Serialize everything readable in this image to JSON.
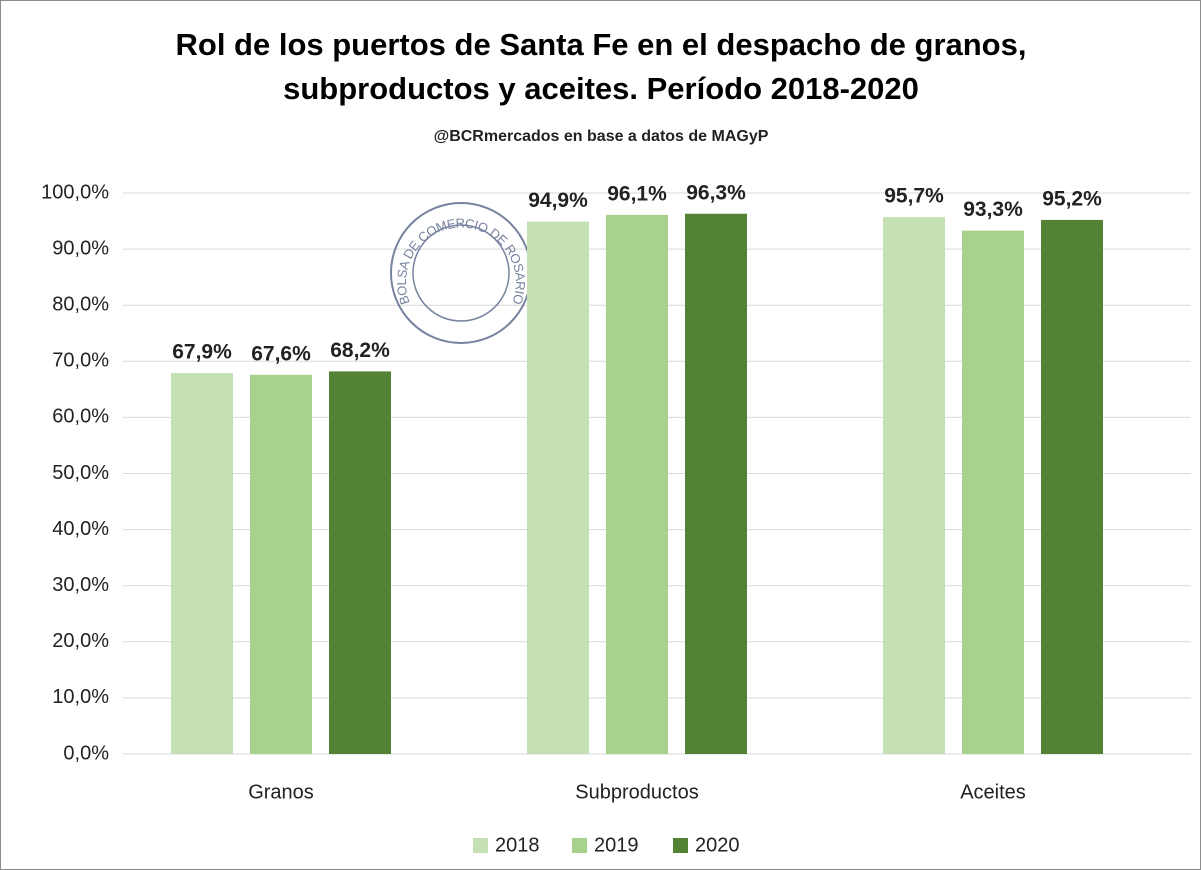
{
  "chart_data": {
    "type": "bar",
    "title": "Rol de los puertos de Santa Fe en el despacho de granos, subproductos y aceites. Período 2018-2020",
    "subtitle": "@BCRmercados en base a datos de MAGyP",
    "watermark": "BOLSA DE COMERCIO DE ROSARIO",
    "categories": [
      "Granos",
      "Subproductos",
      "Aceites"
    ],
    "series": [
      {
        "name": "2018",
        "color": "#c5e0b4",
        "values": [
          67.9,
          94.9,
          95.7
        ],
        "value_labels": [
          "67,9%",
          "94,9%",
          "95,7%"
        ]
      },
      {
        "name": "2019",
        "color": "#a9d18e",
        "values": [
          67.6,
          96.1,
          93.3
        ],
        "value_labels": [
          "67,6%",
          "96,1%",
          "93,3%"
        ]
      },
      {
        "name": "2020",
        "color": "#548235",
        "values": [
          68.2,
          96.3,
          95.2
        ],
        "value_labels": [
          "68,2%",
          "96,3%",
          "95,2%"
        ]
      }
    ],
    "ylim": [
      0,
      100
    ],
    "yticks": [
      {
        "value": 0,
        "label": "0,0%"
      },
      {
        "value": 10,
        "label": "10,0%"
      },
      {
        "value": 20,
        "label": "20,0%"
      },
      {
        "value": 30,
        "label": "30,0%"
      },
      {
        "value": 40,
        "label": "40,0%"
      },
      {
        "value": 50,
        "label": "50,0%"
      },
      {
        "value": 60,
        "label": "60,0%"
      },
      {
        "value": 70,
        "label": "70,0%"
      },
      {
        "value": 80,
        "label": "80,0%"
      },
      {
        "value": 90,
        "label": "90,0%"
      },
      {
        "value": 100,
        "label": "100,0%"
      }
    ],
    "grid": true,
    "legend": "bottom"
  }
}
